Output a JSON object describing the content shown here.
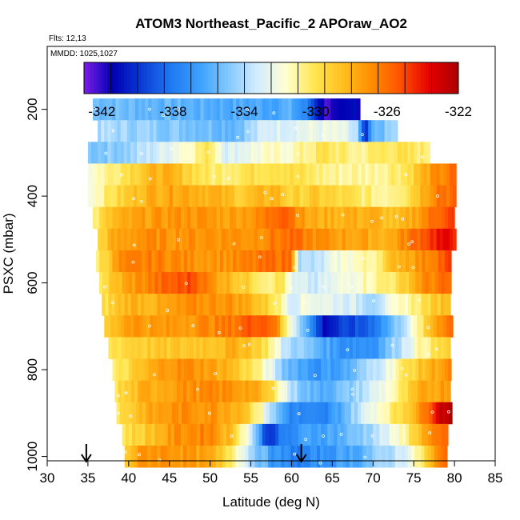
{
  "chart_data": {
    "type": "heatmap",
    "title": "ATOM3 Northeast_Pacific_2 APOraw_AO2",
    "subtitle_flights": "Flts: 12,13",
    "subtitle_dates": "MMDD: 1025,1027",
    "xlabel": "Latitude (deg N)",
    "ylabel": "PSXC (mbar)",
    "xlim": [
      30,
      85
    ],
    "ylim": [
      1010,
      55
    ],
    "x_ticks": [
      "30",
      "35",
      "40",
      "45",
      "50",
      "55",
      "60",
      "65",
      "70",
      "75",
      "80",
      "85"
    ],
    "x_tick_values": [
      30,
      35,
      40,
      45,
      50,
      55,
      60,
      65,
      70,
      75,
      80,
      85
    ],
    "y_ticks": [
      "200",
      "400",
      "600",
      "800",
      "1000"
    ],
    "y_tick_values": [
      200,
      400,
      600,
      800,
      1000
    ],
    "colorbar": {
      "min": -343,
      "max": -322,
      "tick_labels": [
        "-342",
        "-338",
        "-334",
        "-330",
        "-326",
        "-322"
      ],
      "tick_values": [
        -342,
        -338,
        -334,
        -330,
        -326,
        -322
      ],
      "colors": [
        "#7a1ee6",
        "#0000b4",
        "#0a3cd6",
        "#1e78f0",
        "#3ca0ff",
        "#82c8ff",
        "#d2ecff",
        "#ffffd2",
        "#ffe650",
        "#ffbe1e",
        "#ff8c00",
        "#ff5000",
        "#e60000",
        "#aa0000"
      ]
    },
    "arrows_at_latitude": [
      34.8,
      61.2
    ],
    "pressure_bands": [
      {
        "p": 200,
        "lat_min": 35.6,
        "lat_max": 68,
        "anchors": [
          [
            35.6,
            -335.2
          ],
          [
            55,
            -336.2
          ],
          [
            60,
            -336
          ],
          [
            62,
            -338
          ],
          [
            64,
            -342
          ],
          [
            66,
            -342
          ],
          [
            68,
            -341
          ]
        ]
      },
      {
        "p": 250,
        "lat_min": 36.2,
        "lat_max": 73,
        "anchors": [
          [
            36,
            -334
          ],
          [
            48,
            -335
          ],
          [
            53,
            -335.5
          ],
          [
            57,
            -333
          ],
          [
            62,
            -332.5
          ],
          [
            66,
            -332.5
          ],
          [
            68,
            -334
          ],
          [
            69,
            -341
          ],
          [
            70,
            -336
          ],
          [
            73,
            -334
          ]
        ]
      },
      {
        "p": 300,
        "lat_min": 35,
        "lat_max": 77,
        "anchors": [
          [
            35,
            -335
          ],
          [
            40,
            -334.5
          ],
          [
            44,
            -333
          ],
          [
            48,
            -331
          ],
          [
            50,
            -330
          ],
          [
            52,
            -333
          ],
          [
            56,
            -332
          ],
          [
            60,
            -331.5
          ],
          [
            64,
            -330
          ],
          [
            68,
            -331
          ],
          [
            72,
            -330
          ],
          [
            77,
            -330.5
          ]
        ]
      },
      {
        "p": 350,
        "lat_min": 35,
        "lat_max": 80,
        "anchors": [
          [
            35,
            -332
          ],
          [
            38,
            -330.5
          ],
          [
            41,
            -329
          ],
          [
            44,
            -328
          ],
          [
            47,
            -329
          ],
          [
            50,
            -330.5
          ],
          [
            54,
            -330
          ],
          [
            58,
            -329.5
          ],
          [
            61,
            -330
          ],
          [
            65,
            -331
          ],
          [
            70,
            -331
          ],
          [
            74,
            -330
          ],
          [
            77,
            -327.5
          ],
          [
            80,
            -326
          ]
        ]
      },
      {
        "p": 400,
        "lat_min": 35,
        "lat_max": 80,
        "anchors": [
          [
            35,
            -332
          ],
          [
            38,
            -330
          ],
          [
            42,
            -328
          ],
          [
            46,
            -327.5
          ],
          [
            50,
            -328
          ],
          [
            54,
            -329
          ],
          [
            58,
            -328
          ],
          [
            60,
            -329.5
          ],
          [
            63,
            -329
          ],
          [
            67,
            -330
          ],
          [
            71,
            -331
          ],
          [
            74,
            -330
          ],
          [
            78,
            -326
          ],
          [
            80,
            -326
          ]
        ]
      },
      {
        "p": 450,
        "lat_min": 35.6,
        "lat_max": 80,
        "anchors": [
          [
            35.5,
            -331
          ],
          [
            38,
            -328.5
          ],
          [
            42,
            -327.5
          ],
          [
            47,
            -327
          ],
          [
            52,
            -327.5
          ],
          [
            56,
            -327
          ],
          [
            59,
            -325
          ],
          [
            62,
            -328
          ],
          [
            66,
            -328
          ],
          [
            70,
            -328
          ],
          [
            73,
            -329
          ],
          [
            76,
            -327
          ],
          [
            79,
            -325
          ],
          [
            80,
            -325
          ]
        ]
      },
      {
        "p": 500,
        "lat_min": 36.2,
        "lat_max": 80,
        "anchors": [
          [
            36,
            -330
          ],
          [
            38,
            -328
          ],
          [
            41,
            -327
          ],
          [
            45,
            -327
          ],
          [
            50,
            -327
          ],
          [
            55,
            -327
          ],
          [
            60,
            -326
          ],
          [
            63,
            -327
          ],
          [
            67,
            -327.5
          ],
          [
            72,
            -328
          ],
          [
            75,
            -326
          ],
          [
            78,
            -324
          ],
          [
            80,
            -324
          ]
        ]
      },
      {
        "p": 550,
        "lat_min": 36,
        "lat_max": 79.5,
        "anchors": [
          [
            36,
            -330.5
          ],
          [
            39,
            -327
          ],
          [
            43,
            -326.5
          ],
          [
            48,
            -327
          ],
          [
            53,
            -327
          ],
          [
            58,
            -326
          ],
          [
            60,
            -326
          ],
          [
            61,
            -334
          ],
          [
            63,
            -334
          ],
          [
            66,
            -332
          ],
          [
            70,
            -331
          ],
          [
            73,
            -328
          ],
          [
            76,
            -327
          ],
          [
            79.5,
            -325
          ]
        ]
      },
      {
        "p": 600,
        "lat_min": 36.4,
        "lat_max": 79.5,
        "anchors": [
          [
            36.5,
            -330
          ],
          [
            40,
            -327.5
          ],
          [
            44,
            -326
          ],
          [
            48,
            -325
          ],
          [
            50,
            -327
          ],
          [
            54,
            -329
          ],
          [
            57,
            -330.5
          ],
          [
            59,
            -330
          ],
          [
            60,
            -333
          ],
          [
            63,
            -333.5
          ],
          [
            67,
            -332
          ],
          [
            70,
            -331
          ],
          [
            73,
            -330
          ],
          [
            76,
            -327
          ],
          [
            79.5,
            -326
          ]
        ]
      },
      {
        "p": 650,
        "lat_min": 36.7,
        "lat_max": 79.5,
        "anchors": [
          [
            36.7,
            -330
          ],
          [
            40,
            -328
          ],
          [
            44,
            -328
          ],
          [
            48,
            -327
          ],
          [
            52,
            -327
          ],
          [
            55,
            -328
          ],
          [
            58,
            -330
          ],
          [
            60,
            -333
          ],
          [
            62,
            -332
          ],
          [
            64,
            -332.5
          ],
          [
            67,
            -333
          ],
          [
            70,
            -334
          ],
          [
            73,
            -332
          ],
          [
            76,
            -330
          ],
          [
            79.5,
            -328
          ]
        ]
      },
      {
        "p": 700,
        "lat_min": 37,
        "lat_max": 79.5,
        "anchors": [
          [
            37,
            -329.5
          ],
          [
            40,
            -327
          ],
          [
            44,
            -327.5
          ],
          [
            48,
            -327
          ],
          [
            52,
            -326.5
          ],
          [
            56,
            -325
          ],
          [
            58,
            -326
          ],
          [
            59,
            -330
          ],
          [
            61,
            -334
          ],
          [
            62,
            -336.5
          ],
          [
            64,
            -341
          ],
          [
            66,
            -340
          ],
          [
            69,
            -339
          ],
          [
            72,
            -336
          ],
          [
            75,
            -332
          ],
          [
            78,
            -327
          ],
          [
            79.5,
            -326
          ]
        ]
      },
      {
        "p": 750,
        "lat_min": 37.5,
        "lat_max": 79.5,
        "anchors": [
          [
            37.5,
            -330
          ],
          [
            41,
            -329
          ],
          [
            45,
            -329
          ],
          [
            50,
            -328.5
          ],
          [
            54,
            -328
          ],
          [
            57,
            -330
          ],
          [
            59,
            -333.5
          ],
          [
            62,
            -335
          ],
          [
            66,
            -337
          ],
          [
            70,
            -337
          ],
          [
            73,
            -334
          ],
          [
            76,
            -331
          ],
          [
            79.5,
            -329
          ]
        ]
      },
      {
        "p": 800,
        "lat_min": 38,
        "lat_max": 79.5,
        "anchors": [
          [
            38,
            -331
          ],
          [
            41,
            -329
          ],
          [
            45,
            -327
          ],
          [
            48,
            -327
          ],
          [
            52,
            -328
          ],
          [
            55,
            -330
          ],
          [
            57,
            -332
          ],
          [
            59,
            -335
          ],
          [
            63,
            -337
          ],
          [
            67,
            -336
          ],
          [
            71,
            -333
          ],
          [
            74,
            -330
          ],
          [
            77,
            -328
          ],
          [
            79.5,
            -327
          ]
        ]
      },
      {
        "p": 850,
        "lat_min": 38.3,
        "lat_max": 79.5,
        "anchors": [
          [
            38.3,
            -330
          ],
          [
            42,
            -328
          ],
          [
            47,
            -327
          ],
          [
            52,
            -327
          ],
          [
            55,
            -327.5
          ],
          [
            58,
            -330
          ],
          [
            60,
            -334
          ],
          [
            63,
            -336
          ],
          [
            67,
            -335
          ],
          [
            70,
            -333
          ],
          [
            73,
            -331
          ],
          [
            76,
            -328
          ],
          [
            79.5,
            -327
          ]
        ]
      },
      {
        "p": 900,
        "lat_min": 38.5,
        "lat_max": 79.5,
        "anchors": [
          [
            38.5,
            -330
          ],
          [
            42,
            -328
          ],
          [
            46,
            -327
          ],
          [
            50,
            -327
          ],
          [
            54,
            -328
          ],
          [
            56,
            -331
          ],
          [
            58,
            -335
          ],
          [
            60,
            -337.5
          ],
          [
            64,
            -338
          ],
          [
            67,
            -335
          ],
          [
            70,
            -332
          ],
          [
            73,
            -330
          ],
          [
            76,
            -327
          ],
          [
            78,
            -323
          ],
          [
            79.5,
            -322
          ]
        ]
      },
      {
        "p": 950,
        "lat_min": 39.2,
        "lat_max": 79,
        "anchors": [
          [
            39.2,
            -330
          ],
          [
            42,
            -329
          ],
          [
            46,
            -327
          ],
          [
            50,
            -326.5
          ],
          [
            53,
            -329
          ],
          [
            55,
            -333
          ],
          [
            57,
            -340
          ],
          [
            59,
            -338
          ],
          [
            62,
            -336.5
          ],
          [
            66,
            -336
          ],
          [
            70,
            -334
          ],
          [
            73,
            -332
          ],
          [
            76,
            -328
          ],
          [
            79,
            -326
          ]
        ]
      },
      {
        "p": 1000,
        "lat_min": 39.5,
        "lat_max": 79,
        "anchors": [
          [
            39.5,
            -329
          ],
          [
            42,
            -327
          ],
          [
            46,
            -327
          ],
          [
            50,
            -328
          ],
          [
            53,
            -330.5
          ],
          [
            55,
            -334
          ],
          [
            58,
            -337
          ],
          [
            61,
            -338
          ],
          [
            64,
            -337
          ],
          [
            68,
            -336
          ],
          [
            72,
            -334
          ],
          [
            75,
            -332
          ],
          [
            78,
            -327
          ],
          [
            79,
            -326
          ]
        ]
      }
    ]
  }
}
